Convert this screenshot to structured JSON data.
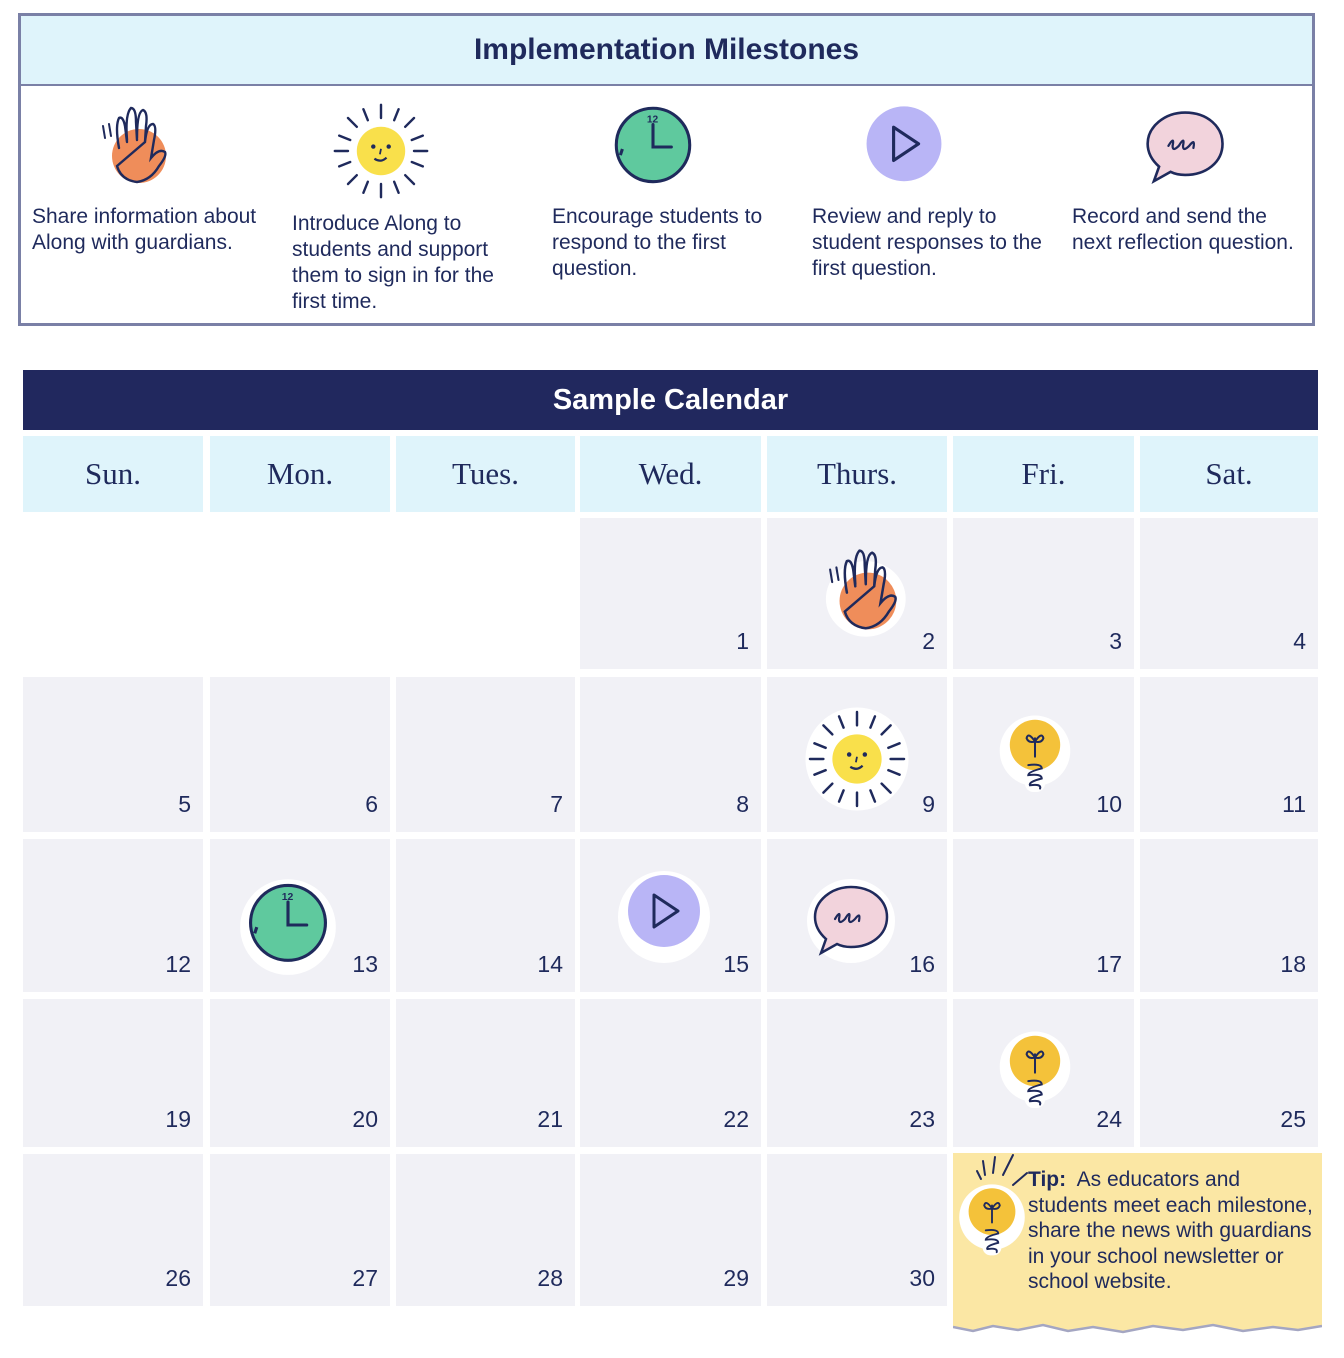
{
  "milestones": {
    "title": "Implementation Milestones",
    "items": [
      {
        "icon": "waving-hand-icon",
        "text": "Share information about Along with guardians."
      },
      {
        "icon": "smiling-sun-icon",
        "text": "Introduce Along to students and support them to sign in for the first time."
      },
      {
        "icon": "clock-icon",
        "text": "Encourage students to respond to the first question."
      },
      {
        "icon": "play-button-icon",
        "text": "Review and reply to student responses to the first question."
      },
      {
        "icon": "speech-bubble-icon",
        "text": "Record and send the next reflection question."
      }
    ]
  },
  "calendar": {
    "title": "Sample Calendar",
    "days": [
      "Sun.",
      "Mon.",
      "Tues.",
      "Wed.",
      "Thurs.",
      "Fri.",
      "Sat."
    ],
    "dates": [
      "1",
      "2",
      "3",
      "4",
      "5",
      "6",
      "7",
      "8",
      "9",
      "10",
      "11",
      "12",
      "13",
      "14",
      "15",
      "16",
      "17",
      "18",
      "19",
      "20",
      "21",
      "22",
      "23",
      "24",
      "25",
      "26",
      "27",
      "28",
      "29",
      "30"
    ],
    "stickers": [
      {
        "date": "2",
        "icon": "waving-hand-icon"
      },
      {
        "date": "9",
        "icon": "smiling-sun-icon"
      },
      {
        "date": "10",
        "icon": "lightbulb-icon"
      },
      {
        "date": "13",
        "icon": "clock-icon"
      },
      {
        "date": "15",
        "icon": "play-button-icon"
      },
      {
        "date": "16",
        "icon": "speech-bubble-icon"
      },
      {
        "date": "24",
        "icon": "lightbulb-icon"
      }
    ]
  },
  "tip": {
    "label": "Tip:",
    "text": "As educators and students meet each milestone, share the news with guardians in your school newsletter or school website.",
    "icon": "lightbulb-icon"
  },
  "colors": {
    "navy": "#21285e",
    "light_blue": "#dff4fb",
    "cell_gray": "#f1f1f6",
    "tip_yellow": "#fbe7a4",
    "hand_orange": "#ef8d5a",
    "sun_yellow": "#f9e04b",
    "clock_green": "#5fc99e",
    "play_purple": "#b9b5f6",
    "bubble_pink": "#f2d3dc",
    "bulb_yellow": "#f4c23a"
  }
}
